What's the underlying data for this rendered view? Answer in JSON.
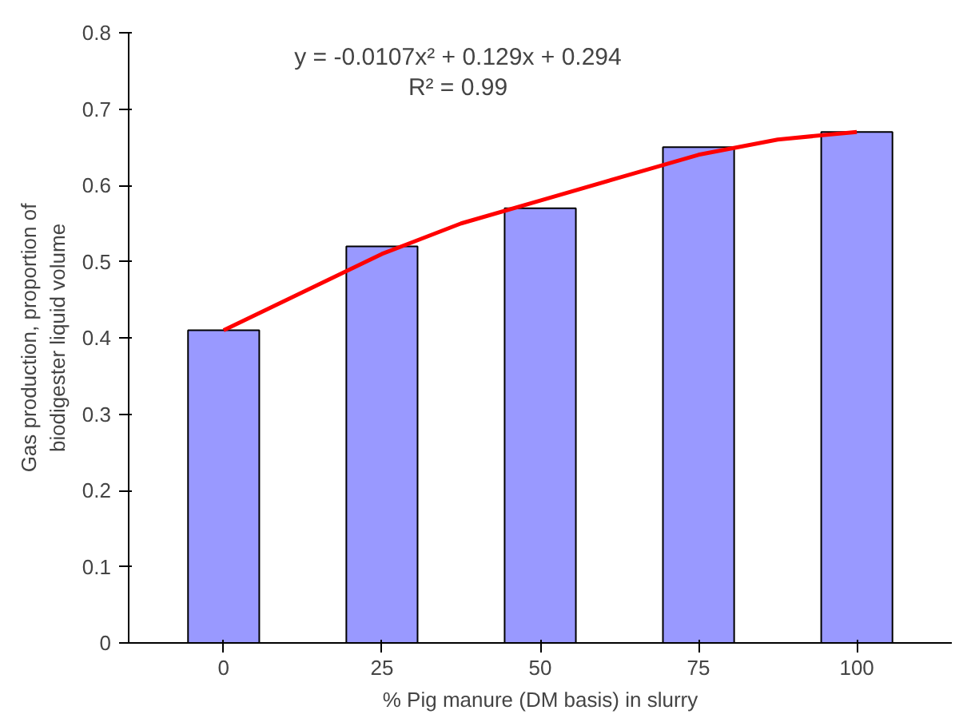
{
  "chart_data": {
    "type": "bar",
    "xlabel": "% Pig manure (DM basis) in slurry",
    "ylabel": "Gas production, proportion of\nbiodigester liquid volume",
    "x": [
      0,
      25,
      50,
      75,
      100
    ],
    "xlim": [
      -15,
      115
    ],
    "xticks": [
      0,
      25,
      50,
      75,
      100
    ],
    "ylim": [
      0,
      0.8
    ],
    "yticks": [
      0,
      0.1,
      0.2,
      0.3,
      0.4,
      0.5,
      0.6,
      0.7,
      0.8
    ],
    "grid": false,
    "series": [
      {
        "color": "#9999ff",
        "values": [
          0.41,
          0.52,
          0.57,
          0.65,
          0.67
        ]
      },
      {
        "type": "line",
        "color": "#ff0000",
        "x": [
          0,
          12.5,
          25,
          37.5,
          50,
          62.5,
          75,
          87.5,
          100
        ],
        "values": [
          0.41,
          0.46,
          0.51,
          0.55,
          0.58,
          0.61,
          0.64,
          0.66,
          0.67
        ]
      }
    ],
    "annotations": [
      "y = -0.0107x² + 0.129x + 0.294",
      "R² = 0.99"
    ]
  }
}
